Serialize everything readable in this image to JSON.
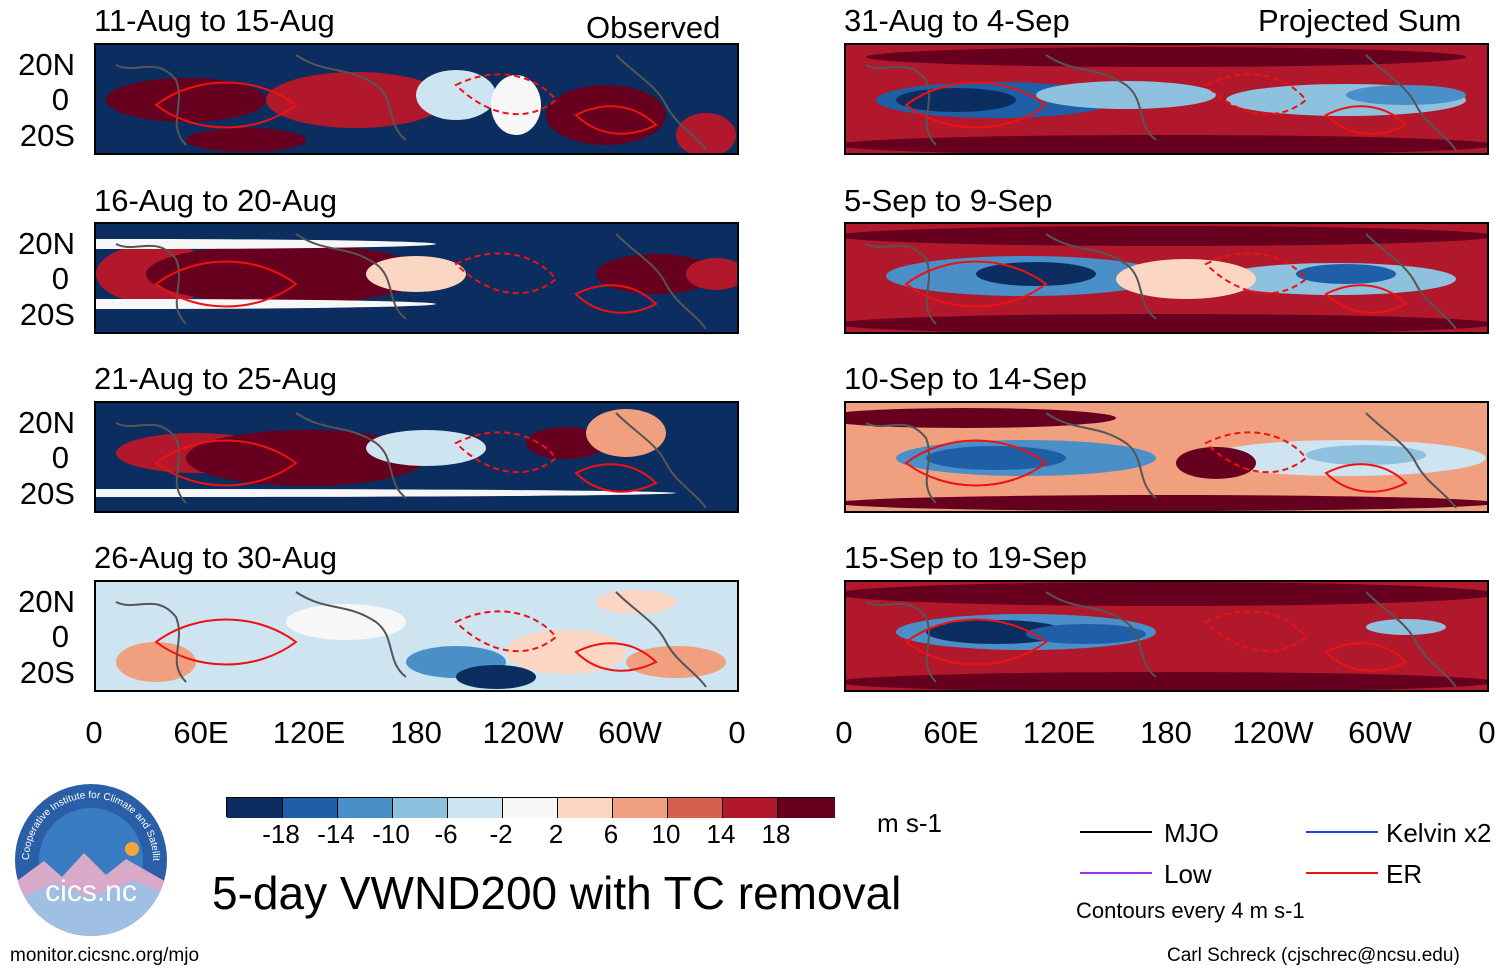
{
  "header": {
    "left_column_label": "Observed",
    "right_column_label": "Projected Sum"
  },
  "panels": [
    {
      "title": "11-Aug to 15-Aug",
      "column": "left"
    },
    {
      "title": "16-Aug to 20-Aug",
      "column": "left"
    },
    {
      "title": "21-Aug to 25-Aug",
      "column": "left"
    },
    {
      "title": "26-Aug to 30-Aug",
      "column": "left"
    },
    {
      "title": "31-Aug to 4-Sep",
      "column": "right"
    },
    {
      "title": "5-Sep to 9-Sep",
      "column": "right"
    },
    {
      "title": "10-Sep to 14-Sep",
      "column": "right"
    },
    {
      "title": "15-Sep to 19-Sep",
      "column": "right"
    }
  ],
  "lat_labels": [
    "20N",
    "0",
    "20S"
  ],
  "lon_labels": [
    "0",
    "60E",
    "120E",
    "180",
    "120W",
    "60W",
    "0"
  ],
  "colorbar": {
    "colors": [
      "#0c2d5f",
      "#1f5fa8",
      "#4a8fc7",
      "#8ec1de",
      "#cfe4f1",
      "#f7f7f7",
      "#fbd6c3",
      "#f09f7f",
      "#d6604d",
      "#b2182b",
      "#67001f"
    ],
    "ticks": [
      "-18",
      "-14",
      "-10",
      "-6",
      "-2",
      "2",
      "6",
      "10",
      "14",
      "18"
    ],
    "units": "m s-1"
  },
  "title": "5-day VWND200 with TC removal",
  "logo": {
    "text": "cics.nc",
    "ring_text": "Cooperative Institute for Climate and Satellites"
  },
  "legend": {
    "items": [
      {
        "label": "MJO",
        "color": "#000000"
      },
      {
        "label": "Kelvin x2",
        "color": "#2244dd"
      },
      {
        "label": "Low",
        "color": "#9933ee"
      },
      {
        "label": "ER",
        "color": "#ee1111"
      }
    ],
    "contour_note": "Contours every 4 m s-1"
  },
  "footer": {
    "left": "monitor.cicsnc.org/mjo",
    "right": "Carl Schreck (cjschrec@ncsu.edu)"
  }
}
